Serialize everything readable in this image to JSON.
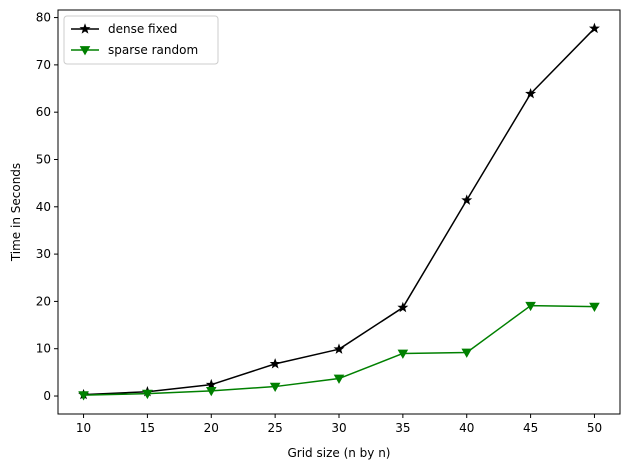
{
  "chart_data": {
    "type": "line",
    "xlabel": "Grid size (n by n)",
    "ylabel": "Time in Seconds",
    "x": [
      10,
      15,
      20,
      25,
      30,
      35,
      40,
      45,
      50
    ],
    "xlim": [
      8,
      52
    ],
    "ylim": [
      -3.8,
      81.6
    ],
    "xticks": [
      10,
      15,
      20,
      25,
      30,
      35,
      40,
      45,
      50
    ],
    "yticks": [
      0,
      10,
      20,
      30,
      40,
      50,
      60,
      70,
      80
    ],
    "grid": false,
    "legend_position": "top-left",
    "series": [
      {
        "name": "dense fixed",
        "color": "#000000",
        "marker": "star",
        "values": [
          0.3,
          0.9,
          2.4,
          6.8,
          9.9,
          18.7,
          41.4,
          63.9,
          77.7
        ]
      },
      {
        "name": "sparse random",
        "color": "#008000",
        "marker": "triangle-down",
        "values": [
          0.2,
          0.5,
          1.1,
          2.0,
          3.7,
          9.0,
          9.2,
          19.1,
          18.9
        ]
      }
    ]
  }
}
